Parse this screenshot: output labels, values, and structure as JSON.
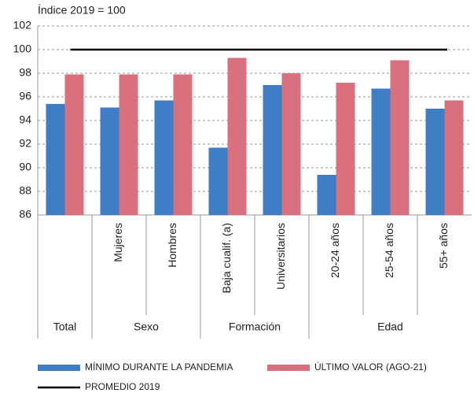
{
  "chart_data": {
    "type": "bar",
    "y_axis_label": "Índice 2019 = 100",
    "categories": [
      null,
      "Mujeres",
      "Hombres",
      "Baja cualif. (a)",
      "Universitarios",
      "20-24 años",
      "25-54 años",
      "55+ años"
    ],
    "groups": [
      {
        "label": "Total",
        "span": 1
      },
      {
        "label": "Sexo",
        "span": 2
      },
      {
        "label": "Formación",
        "span": 2
      },
      {
        "label": "Edad",
        "span": 3
      }
    ],
    "series": [
      {
        "name": "MÍNIMO DURANTE LA PANDEMIA",
        "color": "#3f7dc4",
        "values": [
          95.4,
          95.1,
          95.7,
          91.7,
          97.0,
          89.4,
          96.7,
          95.0
        ]
      },
      {
        "name": "ÚLTIMO VALOR (AGO-21)",
        "color": "#d9707e",
        "values": [
          97.9,
          97.9,
          97.9,
          99.3,
          98.0,
          97.2,
          99.1,
          95.7
        ]
      }
    ],
    "reference": {
      "name": "PROMEDIO 2019",
      "value": 100,
      "color": "#000000"
    },
    "ylim": [
      86,
      102
    ],
    "yticks": [
      86,
      88,
      90,
      92,
      94,
      96,
      98,
      100,
      102
    ],
    "grid": true
  }
}
